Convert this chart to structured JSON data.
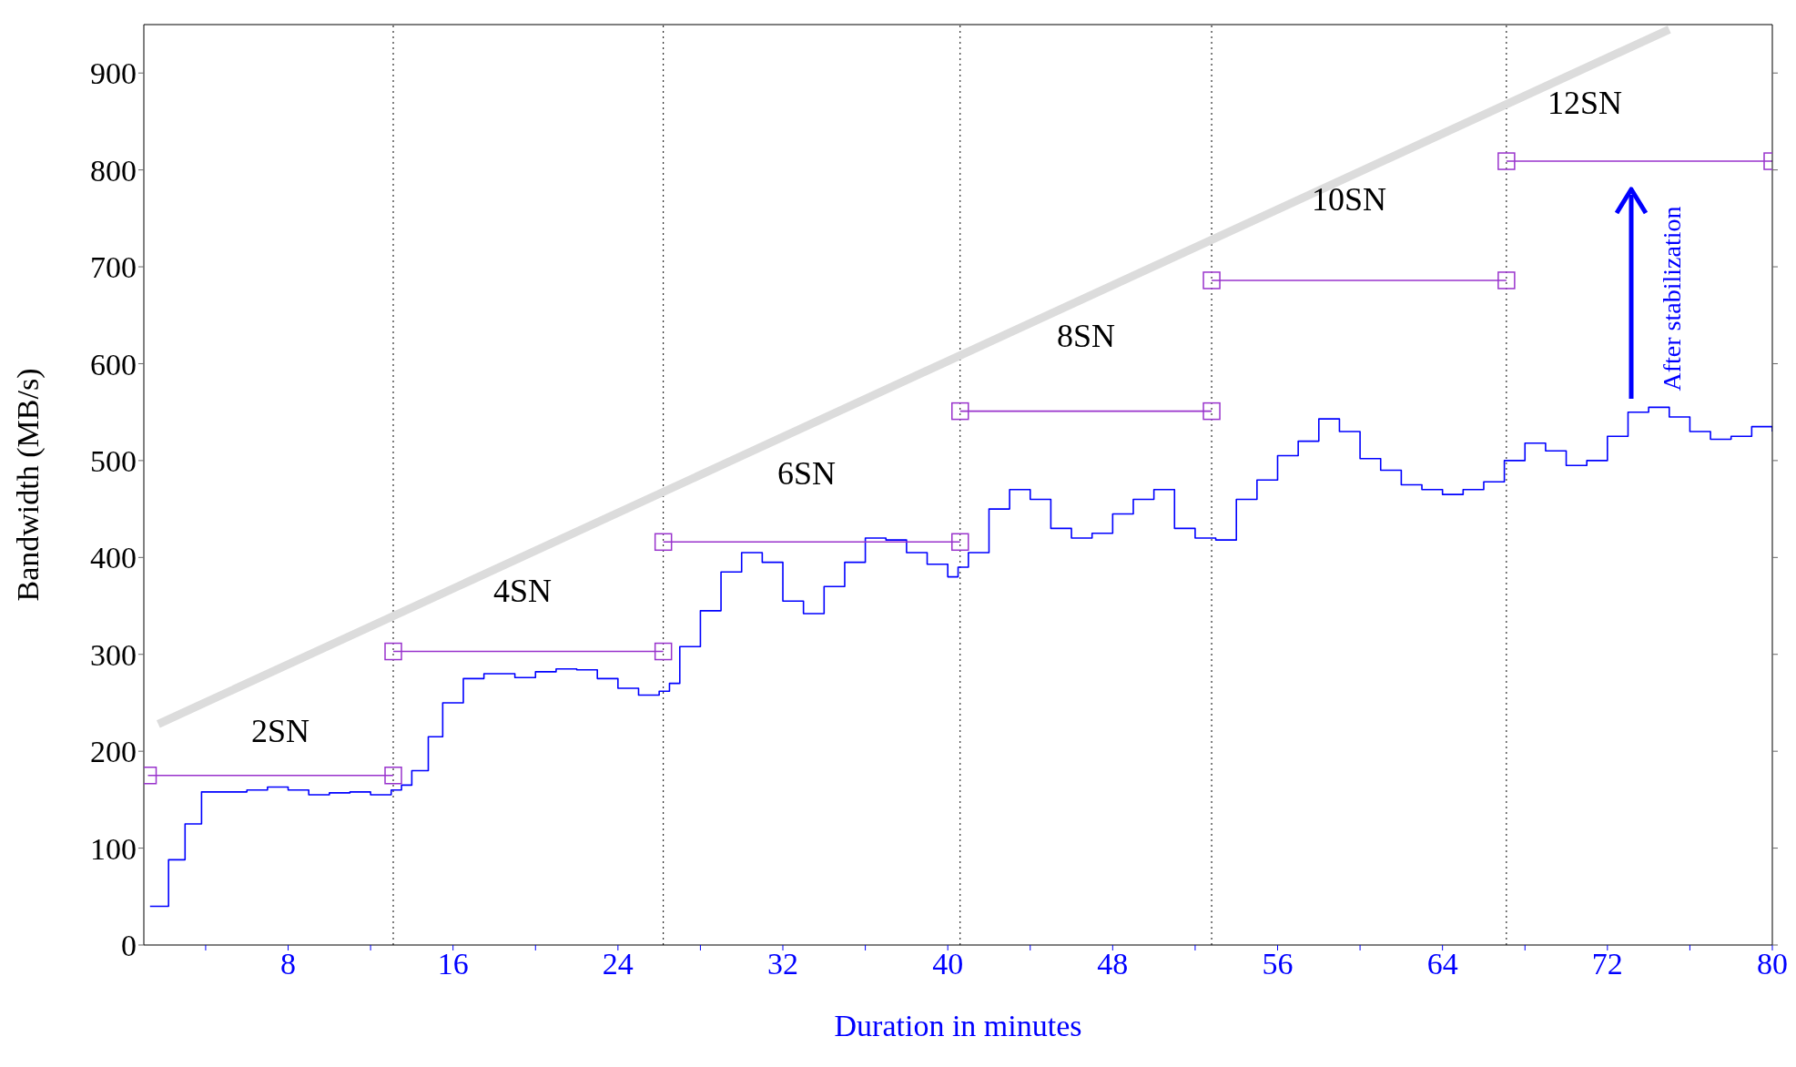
{
  "chart_data": {
    "type": "line",
    "xlabel": "Duration in minutes",
    "ylabel": "Bandwidth (MB/s)",
    "xlim": [
      1,
      80
    ],
    "ylim": [
      0,
      950
    ],
    "xticks": [
      {
        "value": 4,
        "label": null
      },
      8,
      {
        "value": 12,
        "label": null
      },
      16,
      {
        "value": 20,
        "label": null
      },
      24,
      {
        "value": 28,
        "label": null
      },
      32,
      {
        "value": 36,
        "label": null
      },
      40,
      {
        "value": 44,
        "label": null
      },
      48,
      {
        "value": 52,
        "label": null
      },
      56,
      {
        "value": 60,
        "label": null
      },
      64,
      {
        "value": 68,
        "label": null
      },
      72,
      {
        "value": 76,
        "label": null
      },
      80
    ],
    "yticks": [
      0,
      100,
      200,
      300,
      400,
      500,
      600,
      700,
      800,
      900
    ],
    "grid": false,
    "legend": false,
    "series": [
      {
        "type": "step",
        "color": "#0000ff",
        "marker": "none",
        "x": [
          1.3,
          2.2,
          3.0,
          3.8,
          6,
          7,
          8,
          9,
          10,
          11,
          12,
          13,
          13.5,
          14,
          14.8,
          15.5,
          16.5,
          17.5,
          19,
          20,
          21,
          22,
          23,
          24,
          25,
          26,
          26.5,
          27,
          28,
          29,
          30,
          31,
          32,
          33,
          34,
          35,
          36,
          37,
          38,
          39,
          40,
          40.5,
          41,
          42,
          43,
          44,
          45,
          46,
          47,
          48,
          49,
          50,
          51,
          52,
          53,
          54,
          55,
          56,
          57,
          58,
          59,
          60,
          61,
          62,
          63,
          64,
          65,
          66,
          67,
          68,
          69,
          70,
          71,
          72,
          73,
          74,
          75,
          76,
          77,
          78,
          79,
          80
        ],
        "values": [
          40,
          88,
          125,
          158,
          160,
          163,
          160,
          155,
          157,
          158,
          155,
          160,
          165,
          180,
          215,
          250,
          275,
          280,
          276,
          282,
          285,
          284,
          275,
          265,
          258,
          262,
          270,
          308,
          345,
          385,
          405,
          395,
          355,
          342,
          370,
          395,
          420,
          418,
          405,
          393,
          380,
          390,
          405,
          450,
          470,
          460,
          430,
          420,
          425,
          445,
          460,
          470,
          430,
          420,
          418,
          460,
          480,
          505,
          520,
          543,
          530,
          502,
          490,
          475,
          470,
          465,
          470,
          478,
          500,
          518,
          510,
          495,
          500,
          525,
          550,
          555,
          545,
          530,
          522,
          525,
          535,
          530
        ]
      },
      {
        "type": "line",
        "color": "#9933cc",
        "marker": "square",
        "x": [
          1.2,
          13.1
        ],
        "values": [
          175,
          175
        ]
      },
      {
        "type": "line",
        "color": "#9933cc",
        "marker": "square",
        "x": [
          13.1,
          26.2
        ],
        "values": [
          303,
          303
        ]
      },
      {
        "type": "line",
        "color": "#9933cc",
        "marker": "square",
        "x": [
          26.2,
          40.6
        ],
        "values": [
          416,
          416
        ]
      },
      {
        "type": "line",
        "color": "#9933cc",
        "marker": "square",
        "x": [
          40.6,
          52.8
        ],
        "values": [
          551,
          551
        ]
      },
      {
        "type": "line",
        "color": "#9933cc",
        "marker": "square",
        "x": [
          52.8,
          67.1
        ],
        "values": [
          686,
          686
        ]
      },
      {
        "type": "line",
        "color": "#9933cc",
        "marker": "square",
        "x": [
          67.1,
          80
        ],
        "values": [
          809,
          809
        ]
      },
      {
        "type": "line",
        "color": "#dcdcdc",
        "marker": "none",
        "x": [
          1.7,
          75
        ],
        "values": [
          228,
          945
        ]
      }
    ],
    "ref_lines": [
      {
        "axis": "x",
        "value": 13.1,
        "color": "#000000",
        "line_style": "dotted"
      },
      {
        "axis": "x",
        "value": 26.2,
        "color": "#000000",
        "line_style": "dotted"
      },
      {
        "axis": "x",
        "value": 40.6,
        "color": "#000000",
        "line_style": "dotted"
      },
      {
        "axis": "x",
        "value": 52.8,
        "color": "#000000",
        "line_style": "dotted"
      },
      {
        "axis": "x",
        "value": 67.1,
        "color": "#000000",
        "line_style": "dotted"
      }
    ],
    "annotations": [
      "2SN",
      "4SN",
      "6SN",
      "8SN",
      "10SN",
      "12SN",
      "After stabilization"
    ]
  }
}
